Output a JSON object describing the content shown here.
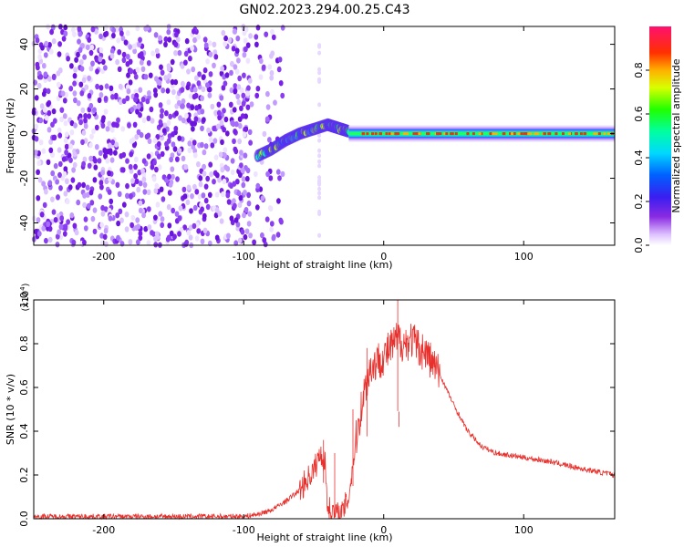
{
  "figure_title": "GN02.2023.294.00.25.C43",
  "chart_data": [
    {
      "type": "heatmap",
      "title": "",
      "xlabel": "Height of straight line (km)",
      "ylabel": "Frequency (Hz)",
      "xlim": [
        -250,
        165
      ],
      "ylim": [
        -50,
        48
      ],
      "xticks": [
        -200,
        -100,
        0,
        100
      ],
      "xtick_labels": [
        "-200",
        "-100",
        "0",
        "100"
      ],
      "yticks": [
        -40,
        -20,
        0,
        20,
        40
      ],
      "ytick_labels": [
        "-40",
        "-20",
        "0",
        "20",
        "40"
      ],
      "colorbar": {
        "label": "Normalized spectral amplitude",
        "range": [
          0,
          1
        ],
        "ticks": [
          0.0,
          0.2,
          0.4,
          0.6,
          0.8
        ],
        "tick_labels": [
          "0.0",
          "0.2",
          "0.4",
          "0.6",
          "0.8"
        ],
        "colormap": "rainbow (white-purple-blue-cyan-green-yellow-red-magenta)"
      },
      "features": {
        "noise_region_x": [
          -250,
          -78
        ],
        "rising_track": {
          "x": [
            -90,
            -80,
            -70,
            -60,
            -50,
            -40,
            -35,
            -30,
            -25
          ],
          "freq": [
            -10,
            -7,
            -3,
            0,
            2,
            4,
            3,
            2,
            1
          ]
        },
        "flat_track": {
          "x": [
            -25,
            165
          ],
          "freq": 0
        }
      },
      "grid": false
    },
    {
      "type": "line",
      "title": "",
      "xlabel": "Height of straight line (km)",
      "ylabel": "SNR (10 * v/v)",
      "y_multiplier": "(x10^4)",
      "xlim": [
        -250,
        165
      ],
      "ylim": [
        0,
        1.0
      ],
      "xticks": [
        -200,
        -100,
        0,
        100
      ],
      "xtick_labels": [
        "-200",
        "-100",
        "0",
        "100"
      ],
      "yticks": [
        0.0,
        0.2,
        0.4,
        0.6,
        0.8,
        1.0
      ],
      "ytick_labels": [
        "0.0",
        "0.2",
        "0.4",
        "0.6",
        "0.8",
        "1.0"
      ],
      "series_color": "#e8302c",
      "x": [
        -250,
        -200,
        -150,
        -100,
        -90,
        -80,
        -70,
        -60,
        -55,
        -50,
        -45,
        -42,
        -40,
        -35,
        -30,
        -25,
        -20,
        -15,
        -10,
        -5,
        0,
        5,
        10,
        15,
        20,
        25,
        30,
        40,
        50,
        60,
        70,
        80,
        90,
        100,
        120,
        140,
        165
      ],
      "y": [
        0.01,
        0.01,
        0.01,
        0.01,
        0.02,
        0.04,
        0.08,
        0.13,
        0.18,
        0.22,
        0.3,
        0.26,
        0.05,
        0.02,
        0.02,
        0.1,
        0.35,
        0.55,
        0.68,
        0.72,
        0.74,
        0.78,
        0.82,
        0.8,
        0.82,
        0.78,
        0.76,
        0.66,
        0.52,
        0.4,
        0.33,
        0.3,
        0.29,
        0.28,
        0.26,
        0.23,
        0.2
      ],
      "spikes": [
        {
          "x": -43,
          "y": 0.36
        },
        {
          "x": -35,
          "y": 0.3
        },
        {
          "x": -22,
          "y": 0.5
        },
        {
          "x": -12,
          "y": 0.78
        },
        {
          "x": 10,
          "y": 1.0
        },
        {
          "x": 11,
          "y": 0.42
        }
      ],
      "grid": false
    }
  ]
}
